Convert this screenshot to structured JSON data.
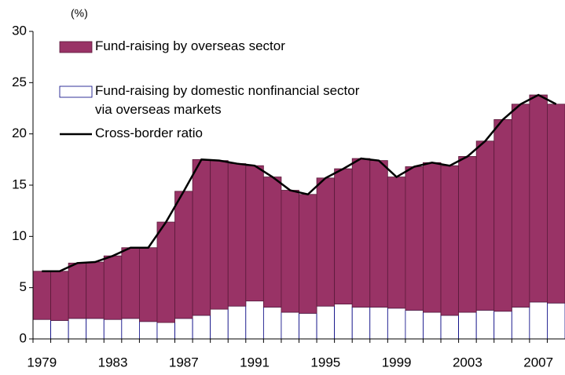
{
  "chart_data": {
    "type": "bar",
    "stacked": true,
    "unit_label": "(%)",
    "categories": [
      "1979",
      null,
      null,
      null,
      "1983",
      null,
      null,
      null,
      "1987",
      null,
      null,
      null,
      "1991",
      null,
      null,
      null,
      "1995",
      null,
      null,
      null,
      "1999",
      null,
      null,
      null,
      "2003",
      null,
      null,
      null,
      "2007",
      null
    ],
    "series": [
      {
        "name": "Fund-raising by overseas sector",
        "type": "bar",
        "color": "#993366",
        "values": [
          4.7,
          4.8,
          5.4,
          5.5,
          6.2,
          6.9,
          7.2,
          9.8,
          12.4,
          15.2,
          14.5,
          13.9,
          13.2,
          12.7,
          11.9,
          11.6,
          12.5,
          13.2,
          14.5,
          14.3,
          12.8,
          14.0,
          14.6,
          14.6,
          15.2,
          16.5,
          18.7,
          19.8,
          20.2,
          19.4
        ]
      },
      {
        "name": "Fund-raising by domestic nonfinancial sector\nvia overseas markets",
        "type": "bar",
        "color": "#ffffff",
        "values": [
          1.9,
          1.8,
          2.0,
          2.0,
          1.9,
          2.0,
          1.7,
          1.6,
          2.0,
          2.3,
          2.9,
          3.2,
          3.7,
          3.1,
          2.6,
          2.5,
          3.2,
          3.4,
          3.1,
          3.1,
          3.0,
          2.8,
          2.6,
          2.3,
          2.6,
          2.8,
          2.7,
          3.1,
          3.6,
          3.5
        ]
      },
      {
        "name": "Cross-border ratio",
        "type": "line",
        "color": "#000000",
        "values": [
          6.6,
          6.6,
          7.4,
          7.5,
          8.1,
          8.9,
          8.9,
          11.4,
          14.4,
          17.5,
          17.4,
          17.1,
          16.9,
          15.8,
          14.5,
          14.1,
          15.7,
          16.6,
          17.6,
          17.4,
          15.8,
          16.8,
          17.2,
          16.9,
          17.8,
          19.3,
          21.4,
          22.9,
          23.8,
          22.9
        ]
      }
    ],
    "ylim": [
      0,
      30
    ],
    "yticks": [
      0,
      5,
      10,
      15,
      20,
      25,
      30
    ],
    "grid": false,
    "legend": "top-left"
  }
}
